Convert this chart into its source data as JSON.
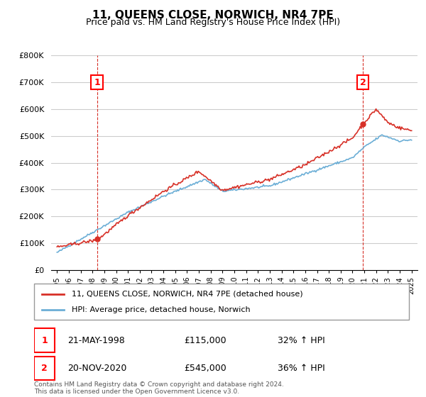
{
  "title": "11, QUEENS CLOSE, NORWICH, NR4 7PE",
  "subtitle": "Price paid vs. HM Land Registry's House Price Index (HPI)",
  "legend_line1": "11, QUEENS CLOSE, NORWICH, NR4 7PE (detached house)",
  "legend_line2": "HPI: Average price, detached house, Norwich",
  "annotation1_label": "1",
  "annotation1_date": "21-MAY-1998",
  "annotation1_price": "£115,000",
  "annotation1_hpi": "32% ↑ HPI",
  "annotation1_year": 1998.38,
  "annotation1_value": 115000,
  "annotation2_label": "2",
  "annotation2_date": "20-NOV-2020",
  "annotation2_price": "£545,000",
  "annotation2_hpi": "36% ↑ HPI",
  "annotation2_year": 2020.88,
  "annotation2_value": 545000,
  "hpi_color": "#6baed6",
  "price_color": "#d73027",
  "dashed_line_color": "#d73027",
  "background_color": "#ffffff",
  "grid_color": "#cccccc",
  "footer": "Contains HM Land Registry data © Crown copyright and database right 2024.\nThis data is licensed under the Open Government Licence v3.0.",
  "ylim": [
    0,
    800000
  ],
  "xmin": 1994.5,
  "xmax": 2025.5
}
